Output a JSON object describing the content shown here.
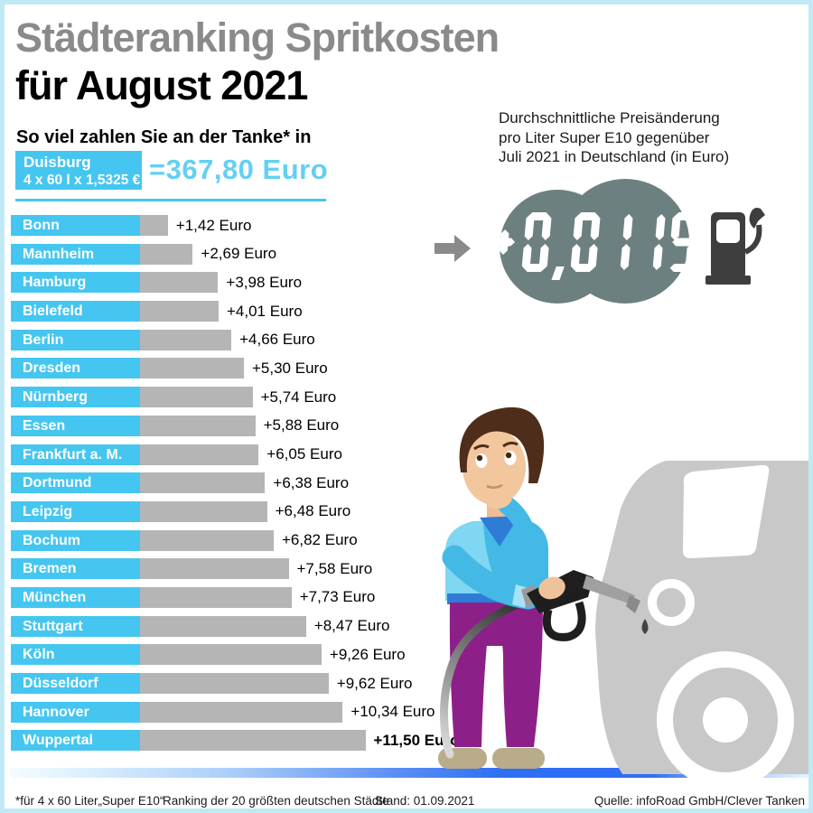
{
  "title": {
    "line1": "Städteranking Spritkosten",
    "line2": "für August 2021"
  },
  "subtitle": "So viel zahlen Sie an der Tanke* in",
  "highlight": {
    "city": "Duisburg",
    "formula": "4 x 60 l x 1,5325 €",
    "total": "=367,80 Euro"
  },
  "chart_data": {
    "type": "bar",
    "orientation": "horizontal",
    "title": "Städteranking Spritkosten für August 2021",
    "xlabel": "",
    "ylabel": "",
    "unit": "Euro",
    "xlim": [
      0,
      12
    ],
    "grid": false,
    "baseline": {
      "city": "Duisburg",
      "formula": "4 x 60 l x 1,5325 €",
      "total_euro": 367.8
    },
    "categories": [
      "Bonn",
      "Mannheim",
      "Hamburg",
      "Bielefeld",
      "Berlin",
      "Dresden",
      "Nürnberg",
      "Essen",
      "Frankfurt a. M.",
      "Dortmund",
      "Leipzig",
      "Bochum",
      "Bremen",
      "München",
      "Stuttgart",
      "Köln",
      "Düsseldorf",
      "Hannover",
      "Wuppertal"
    ],
    "values": [
      1.42,
      2.69,
      3.98,
      4.01,
      4.66,
      5.3,
      5.74,
      5.88,
      6.05,
      6.38,
      6.48,
      6.82,
      7.58,
      7.73,
      8.47,
      9.26,
      9.62,
      10.34,
      11.5
    ],
    "value_labels": [
      "+1,42 Euro",
      "+2,69 Euro",
      "+3,98 Euro",
      "+4,01 Euro",
      "+4,66 Euro",
      "+5,30 Euro",
      "+5,74 Euro",
      "+5,88 Euro",
      "+6,05 Euro",
      "+6,38 Euro",
      "+6,48 Euro",
      "+6,82 Euro",
      "+7,58 Euro",
      "+7,73 Euro",
      "+8,47 Euro",
      "+9,26 Euro",
      "+9,62 Euro",
      "+10,34 Euro",
      "+11,50 Euro"
    ],
    "highlight_last": true
  },
  "info_panel": {
    "line1": "Durchschnittliche Preisänderung",
    "line2": "pro Liter Super E10 gegenüber",
    "line3": "Juli 2021 in Deutschland (in Euro)",
    "display_value": "+0,0115"
  },
  "footer": {
    "note": "*für 4 x 60 Liter„Super E10“",
    "ranking": "Ranking der 20 größten deutschen Städte",
    "date": "Stand: 01.09.2021",
    "source": "Quelle: infoRoad GmbH/Clever Tanken"
  },
  "colors": {
    "accent_cyan": "#45c6f0",
    "accent_light_text": "#63d0f2",
    "bar_gray": "#b5b5b5",
    "title_gray": "#8a8a8a",
    "border_cyan": "#bfe9f5",
    "display_teal": "#6d8080",
    "pump_dark": "#3e3e3e",
    "gradient_blue": "#2d6ef3"
  }
}
